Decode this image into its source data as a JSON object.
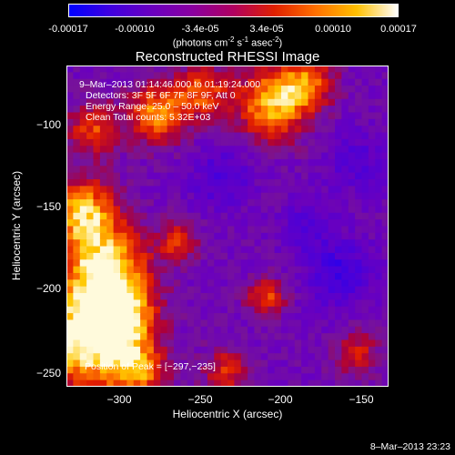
{
  "colorbar": {
    "colors": [
      "#0000ff",
      "#4000e0",
      "#6a00c0",
      "#8a00a0",
      "#b00060",
      "#e02000",
      "#ff7000",
      "#ffc000",
      "#ffffff"
    ],
    "ticks": [
      "-0.00017",
      "-0.00010",
      "-3.4e-05",
      "3.4e-05",
      "0.00010",
      "0.00017"
    ],
    "units_pre": "(photons cm",
    "units_exp1": "-2",
    "units_mid1": " s",
    "units_exp2": "-1",
    "units_mid2": " asec",
    "units_exp3": "-2",
    "units_post": ")"
  },
  "chart_data": {
    "type": "heatmap",
    "title": "Reconstructed RHESSI Image",
    "xlabel": "Heliocentric X (arcsec)",
    "ylabel": "Heliocentric Y (arcsec)",
    "xlim": [
      -335,
      -137
    ],
    "ylim": [
      -257,
      -74
    ],
    "xticks": [
      -300,
      -250,
      -200,
      -150
    ],
    "yticks": [
      -100,
      -150,
      -200,
      -250
    ],
    "xtick_labels": [
      "−300",
      "−250",
      "−200",
      "−150"
    ],
    "ytick_labels": [
      "−100",
      "−150",
      "−200",
      "−250"
    ],
    "peak": [
      -297,
      -235
    ],
    "annotations": {
      "time": "9–Mar–2013 01:14:46.000 to 01:19:24.000",
      "detectors": "Detectors: 3F 5F 6F 7F 8F 9F, Att 0",
      "energy": "Energy Range: 25.0 – 50.0 keV",
      "clean": "Clean     Total counts: 5.32E+03",
      "peak_label": "Position of Peak = [−297,−235]"
    }
  },
  "timestamp": "8–Mar–2013 23:23"
}
